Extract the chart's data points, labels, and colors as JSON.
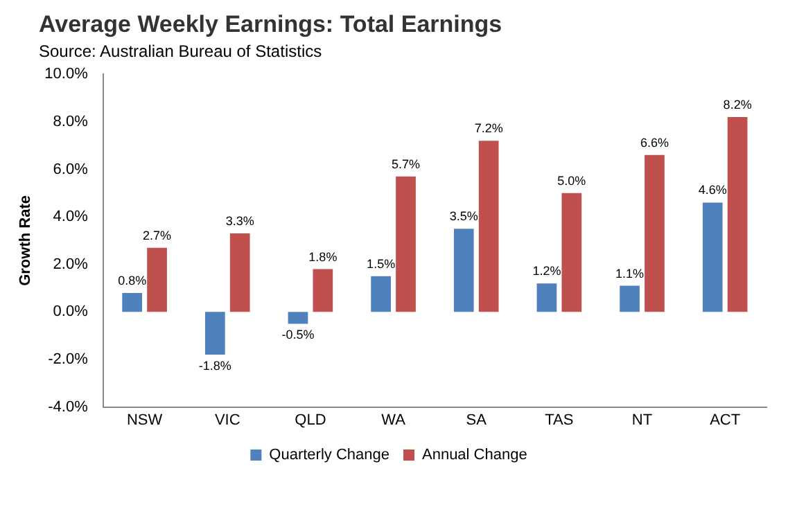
{
  "chart_data": {
    "type": "bar",
    "title": "Average Weekly Earnings: Total Earnings",
    "subtitle": "Source: Australian Bureau of Statistics",
    "ylabel": "Growth Rate",
    "categories": [
      "NSW",
      "VIC",
      "QLD",
      "WA",
      "SA",
      "TAS",
      "NT",
      "ACT"
    ],
    "series": [
      {
        "name": "Quarterly Change",
        "color": "#4f81bd",
        "values": [
          0.8,
          -1.8,
          -0.5,
          1.5,
          3.5,
          1.2,
          1.1,
          4.6
        ],
        "value_labels": [
          "0.8%",
          "-1.8%",
          "-0.5%",
          "1.5%",
          "3.5%",
          "1.2%",
          "1.1%",
          "4.6%"
        ]
      },
      {
        "name": "Annual Change",
        "color": "#c0504d",
        "values": [
          2.7,
          3.3,
          1.8,
          5.7,
          7.2,
          5.0,
          6.6,
          8.2
        ],
        "value_labels": [
          "2.7%",
          "3.3%",
          "1.8%",
          "5.7%",
          "7.2%",
          "5.0%",
          "6.6%",
          "8.2%"
        ]
      }
    ],
    "ylim": [
      -4,
      10
    ],
    "yticks": [
      {
        "value": -4,
        "label": "-4.0%"
      },
      {
        "value": -2,
        "label": "-2.0%"
      },
      {
        "value": 0,
        "label": "0.0%"
      },
      {
        "value": 2,
        "label": "2.0%"
      },
      {
        "value": 4,
        "label": "4.0%"
      },
      {
        "value": 6,
        "label": "6.0%"
      },
      {
        "value": 8,
        "label": "8.0%"
      },
      {
        "value": 10,
        "label": "10.0%"
      }
    ],
    "grid": false,
    "legend": "bottom"
  }
}
